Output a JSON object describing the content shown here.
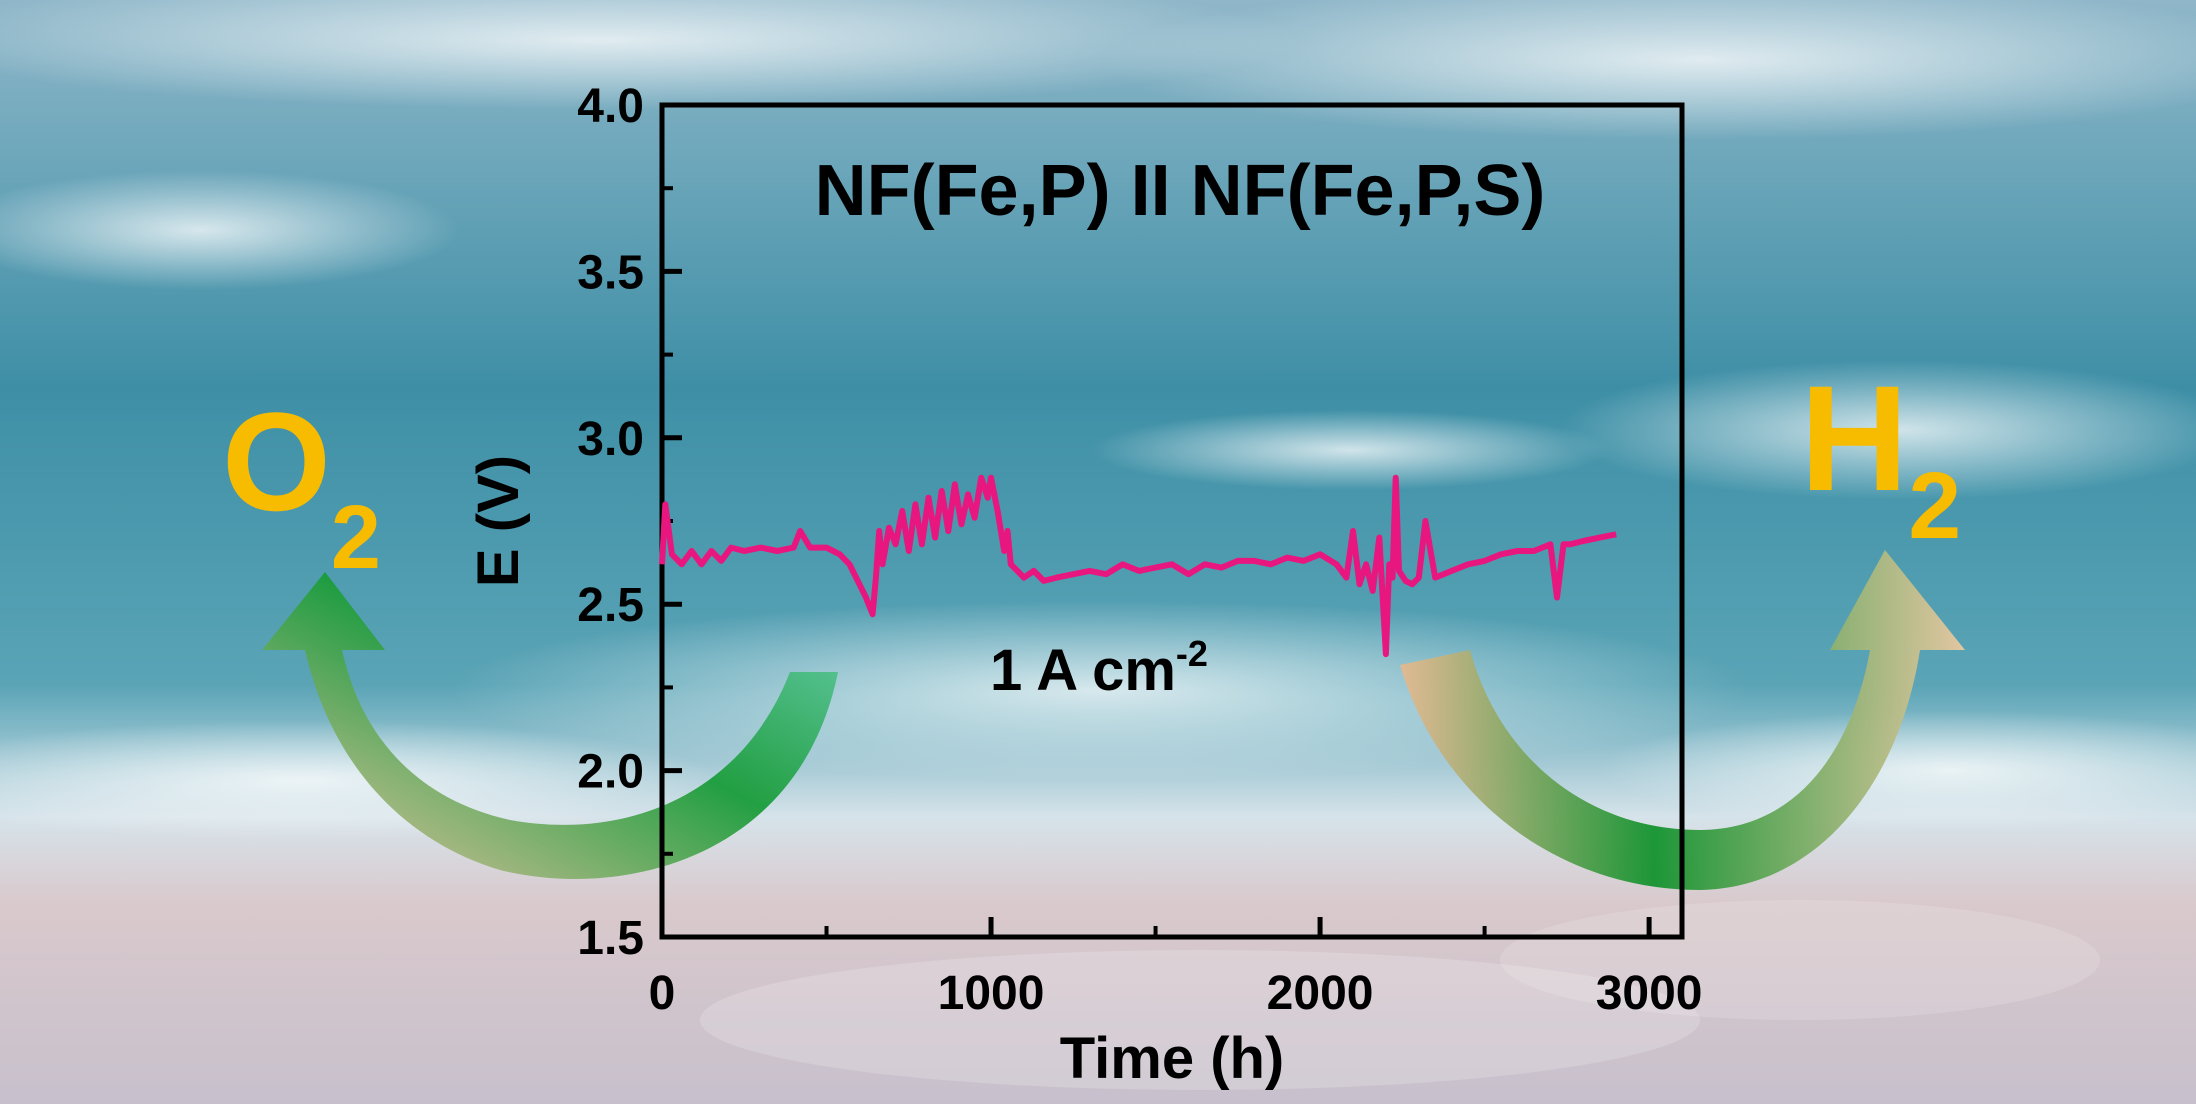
{
  "chart_data": {
    "type": "line",
    "title": "NF(Fe,P) II NF(Fe,P,S)",
    "annotation": "1 A cm",
    "annotation_superscript": "-2",
    "xlabel": "Time (h)",
    "ylabel": "E (V)",
    "xlim": [
      0,
      3100
    ],
    "ylim": [
      1.5,
      4.0
    ],
    "x_ticks": [
      "0",
      "1000",
      "2000",
      "3000"
    ],
    "y_ticks": [
      "1.5",
      "2.0",
      "2.5",
      "3.0",
      "3.5",
      "4.0"
    ],
    "grid": false,
    "series": [
      {
        "color": "#e8177f",
        "x": [
          0,
          10,
          30,
          60,
          90,
          120,
          150,
          180,
          210,
          250,
          300,
          350,
          400,
          420,
          450,
          500,
          540,
          570,
          590,
          600,
          620,
          640,
          650,
          660,
          670,
          690,
          710,
          730,
          750,
          770,
          790,
          810,
          830,
          850,
          870,
          890,
          910,
          930,
          950,
          970,
          990,
          1000,
          1020,
          1040,
          1050,
          1060,
          1080,
          1100,
          1130,
          1160,
          1200,
          1250,
          1300,
          1350,
          1400,
          1450,
          1500,
          1550,
          1600,
          1650,
          1700,
          1750,
          1800,
          1850,
          1900,
          1950,
          2000,
          2050,
          2080,
          2100,
          2120,
          2140,
          2160,
          2180,
          2200,
          2210,
          2220,
          2230,
          2240,
          2260,
          2280,
          2300,
          2320,
          2350,
          2400,
          2450,
          2500,
          2550,
          2600,
          2650,
          2700,
          2720,
          2740,
          2760,
          2800,
          2850,
          2900
        ],
        "y": [
          2.62,
          2.8,
          2.65,
          2.62,
          2.66,
          2.62,
          2.66,
          2.63,
          2.67,
          2.66,
          2.67,
          2.66,
          2.67,
          2.72,
          2.67,
          2.67,
          2.65,
          2.62,
          2.58,
          2.56,
          2.52,
          2.47,
          2.58,
          2.72,
          2.62,
          2.73,
          2.68,
          2.78,
          2.66,
          2.8,
          2.68,
          2.82,
          2.7,
          2.84,
          2.72,
          2.86,
          2.74,
          2.83,
          2.76,
          2.88,
          2.82,
          2.88,
          2.78,
          2.66,
          2.72,
          2.62,
          2.6,
          2.58,
          2.6,
          2.57,
          2.58,
          2.59,
          2.6,
          2.59,
          2.62,
          2.6,
          2.61,
          2.62,
          2.59,
          2.62,
          2.61,
          2.63,
          2.63,
          2.62,
          2.64,
          2.63,
          2.65,
          2.62,
          2.58,
          2.72,
          2.56,
          2.62,
          2.54,
          2.7,
          2.35,
          2.62,
          2.58,
          2.88,
          2.6,
          2.57,
          2.56,
          2.58,
          2.75,
          2.58,
          2.6,
          2.62,
          2.63,
          2.65,
          2.66,
          2.66,
          2.68,
          2.52,
          2.68,
          2.68,
          2.69,
          2.7,
          2.71
        ]
      }
    ]
  },
  "labels": {
    "left_gas": "O",
    "left_gas_sub": "2",
    "right_gas": "H",
    "right_gas_sub": "2"
  },
  "colors": {
    "gas_label": "#f7bb00",
    "axis": "#000000",
    "arrow_start": "#f1c4a2",
    "arrow_mid": "#16a236",
    "arrow_end": "#8fe0d2"
  }
}
